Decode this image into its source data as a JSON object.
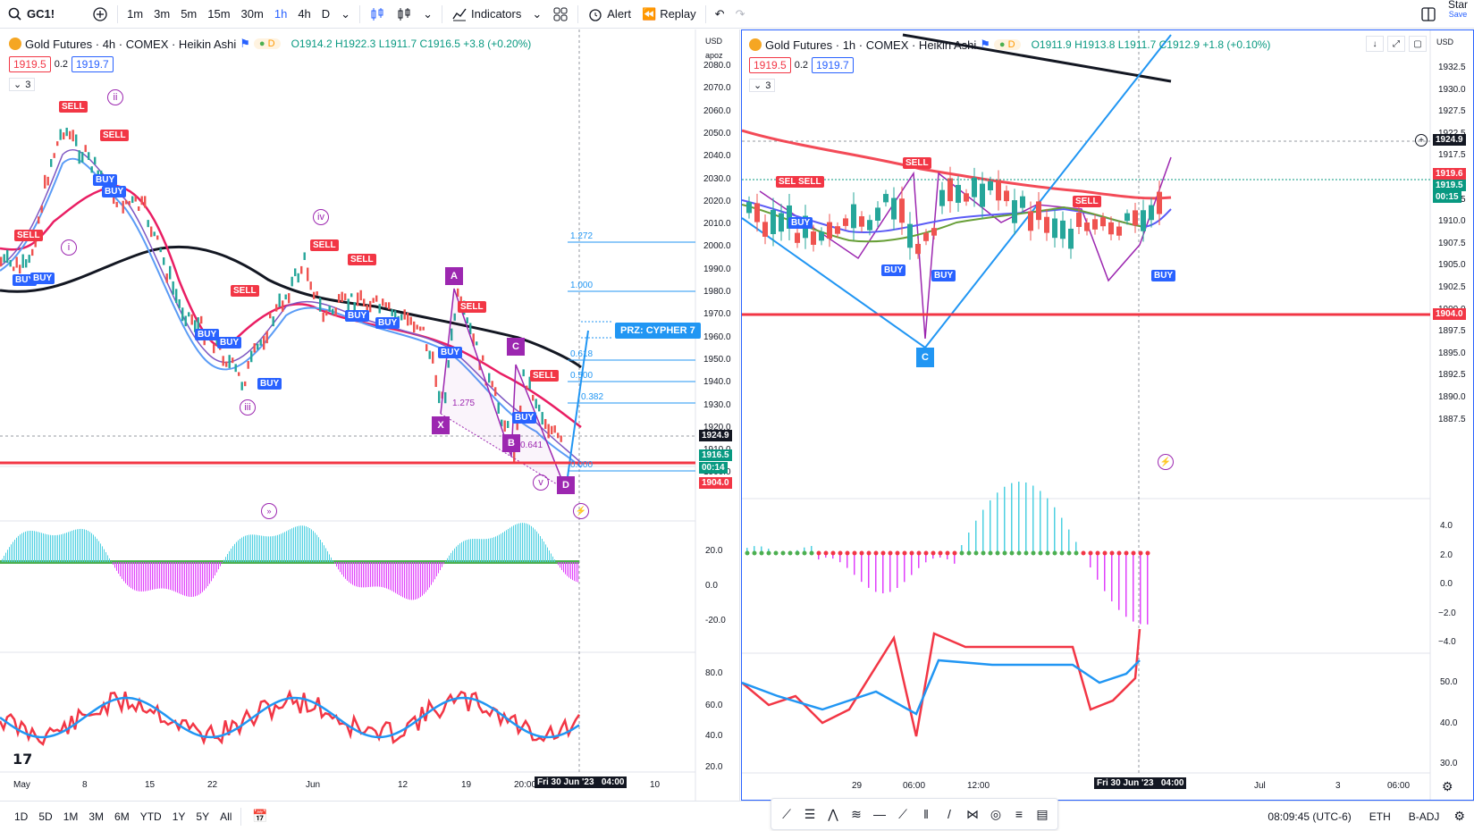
{
  "toolbar": {
    "symbol": "GC1!",
    "intervals": [
      "1m",
      "3m",
      "5m",
      "15m",
      "30m",
      "1h",
      "4h",
      "D"
    ],
    "active_interval": "1h",
    "indicators_label": "Indicators",
    "alert_label": "Alert",
    "replay_label": "Replay",
    "star_label": "Star",
    "save_label": "Save"
  },
  "left_chart": {
    "title": "Gold Futures · 4h · COMEX · Heikin Ashi",
    "d_badge": "D",
    "ohlc": {
      "o": "O1914.2",
      "h": "H1922.3",
      "l": "L1911.7",
      "c": "C1916.5",
      "chg": "+3.8 (+0.20%)"
    },
    "bid": "1919.5",
    "spread": "0.2",
    "ask": "1919.7",
    "collapse_count": "3",
    "currency": "USD",
    "scale_label": "apoz",
    "price_ticks": [
      "2080.0",
      "2070.0",
      "2060.0",
      "2050.0",
      "2040.0",
      "2030.0",
      "2020.0",
      "2010.0",
      "2000.0",
      "1990.0",
      "1980.0",
      "1970.0",
      "1960.0",
      "1950.0",
      "1940.0",
      "1930.0",
      "1920.0",
      "1910.0",
      "1900.0"
    ],
    "last_price": "1924.9",
    "price_tag_close": "1916.5",
    "price_tag_timer": "00:14",
    "line_level": "1904.0",
    "fib_labels": [
      "1.272",
      "1.000",
      "0.618",
      "0.500",
      "0.382",
      "0.000"
    ],
    "prz_label": "PRZ: CYPHER 7",
    "pattern_points": [
      "X",
      "A",
      "B",
      "C",
      "D"
    ],
    "pattern_ratio_1": "1.275",
    "pattern_ratio_2": "0.641",
    "waves": [
      "i",
      "ii",
      "iii",
      "iv",
      "v"
    ],
    "sell_label": "SELL",
    "buy_label": "BUY",
    "osc_ticks": [
      "20.0",
      "0.0",
      "-20.0"
    ],
    "rsi_ticks": [
      "80.0",
      "60.0",
      "40.0",
      "20.0"
    ],
    "time_ticks": [
      "May",
      "8",
      "15",
      "22",
      "Jun",
      "12",
      "19",
      "20:00",
      "10"
    ],
    "cursor_time": "Fri 30 Jun '23",
    "cursor_hour": "04:00"
  },
  "right_chart": {
    "title": "Gold Futures · 1h · COMEX · Heikin Ashi",
    "d_badge": "D",
    "ohlc": {
      "o": "O1911.9",
      "h": "H1913.8",
      "l": "L1911.7",
      "c": "C1912.9",
      "chg": "+1.8 (+0.10%)"
    },
    "bid": "1919.5",
    "spread": "0.2",
    "ask": "1919.7",
    "collapse_count": "3",
    "currency": "USD",
    "price_ticks": [
      "1932.5",
      "1930.0",
      "1927.5",
      "1922.5",
      "1917.5",
      "1915.0",
      "1912.5",
      "1910.0",
      "1907.5",
      "1905.0",
      "1902.5",
      "1900.0",
      "1897.5",
      "1895.0",
      "1892.5",
      "1890.0",
      "1887.5"
    ],
    "crosshair_price": "1924.9",
    "tag_red": "1919.6",
    "tag_green": "1919.5",
    "tag_timer": "00:15",
    "line_level": "1904.0",
    "point_c": "C",
    "sell_label": "SELL",
    "buy_label": "BUY",
    "osc_ticks": [
      "4.0",
      "2.0",
      "0.0",
      "−2.0",
      "−4.0"
    ],
    "rsi_ticks": [
      "50.0",
      "40.0",
      "30.0"
    ],
    "time_ticks": [
      "29",
      "06:00",
      "12:00",
      "Jul",
      "3",
      "06:00"
    ],
    "cursor_time": "Fri 30 Jun '23",
    "cursor_hour": "04:00"
  },
  "bottom": {
    "ranges": [
      "1D",
      "5D",
      "1M",
      "3M",
      "6M",
      "YTD",
      "1Y",
      "5Y",
      "All"
    ],
    "clock": "08:09:45 (UTC-6)",
    "session": "ETH",
    "adj": "B-ADJ"
  }
}
